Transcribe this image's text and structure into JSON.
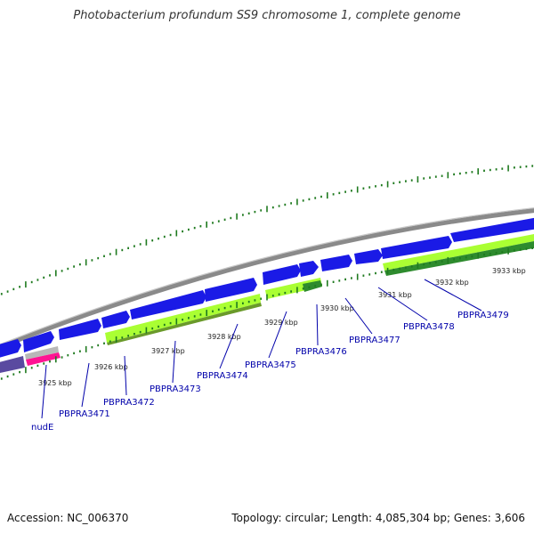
{
  "title": "Photobacterium profundum SS9 chromosome 1, complete genome",
  "footer": {
    "accession": "Accession: NC_006370",
    "summary": "Topology: circular; Length: 4,085,304 bp; Genes: 3,606"
  },
  "colors": {
    "forward_gene": "#1a1ae6",
    "lime_gene": "#aaff33",
    "dark_green_gene": "#2e8b2e",
    "magenta_gene": "#ff1493",
    "slate_gene": "#5a4aa0",
    "backbone": "#8a8a8a",
    "ticks": "#1f7a1f",
    "label": "#0000aa"
  },
  "scale_ticks": [
    "3925 kbp",
    "3926 kbp",
    "3927 kbp",
    "3928 kbp",
    "3929 kbp",
    "3930 kbp",
    "3931 kbp",
    "3932 kbp",
    "3933 kbp"
  ],
  "genes": [
    "nudE",
    "PBPRA3471",
    "PBPRA3472",
    "PBPRA3473",
    "PBPRA3474",
    "PBPRA3475",
    "PBPRA3476",
    "PBPRA3477",
    "PBPRA3478",
    "PBPRA3479"
  ]
}
